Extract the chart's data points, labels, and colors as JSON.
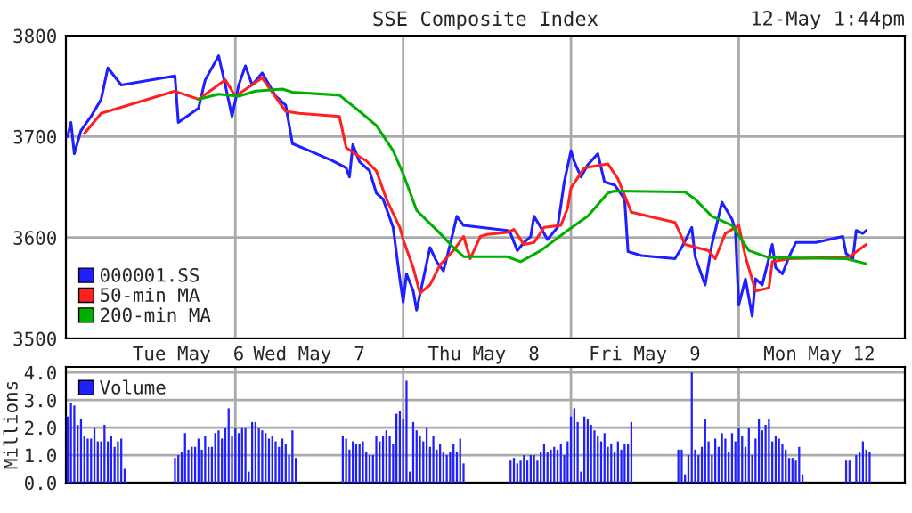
{
  "chart_data": [
    {
      "type": "line",
      "title": "SSE Composite Index",
      "annotations": [
        "12-May 1:44pm"
      ],
      "categories": [
        null,
        null,
        null,
        null,
        null,
        null,
        null,
        null,
        null,
        null,
        null,
        null,
        null,
        null,
        null,
        null,
        null,
        null,
        null,
        null,
        null,
        null,
        null,
        null,
        null,
        null,
        null,
        null,
        null,
        null,
        null,
        null,
        null,
        null,
        null,
        null,
        "Tue May  6",
        null,
        null,
        null,
        null,
        null,
        null,
        null,
        null,
        null,
        null,
        null,
        null,
        null,
        null,
        null,
        null,
        null,
        null,
        null,
        null,
        null,
        null,
        null,
        null,
        null,
        null,
        null,
        null,
        null,
        null,
        null,
        null,
        null,
        null,
        null,
        "Wed May  7",
        null,
        null,
        null,
        null,
        null,
        null,
        null,
        null,
        null,
        null,
        null,
        null,
        null,
        null,
        null,
        null,
        null,
        null,
        null,
        null,
        null,
        null,
        null,
        null,
        null,
        null,
        null,
        null,
        null,
        null,
        null,
        null,
        null,
        null,
        null,
        null,
        null,
        null,
        null,
        null,
        null,
        null,
        null,
        null,
        null,
        null,
        null,
        null,
        null,
        null,
        null,
        "Thu May  8",
        null,
        null,
        null,
        null,
        null,
        null,
        null,
        null,
        null,
        null,
        null,
        null,
        null,
        null,
        null,
        null,
        null,
        null,
        null,
        null,
        null,
        null,
        null,
        null,
        null,
        null,
        null,
        null,
        null,
        null,
        null,
        null,
        null,
        null,
        null,
        null,
        null,
        null,
        null,
        null,
        null,
        null,
        null,
        null,
        null,
        null,
        null,
        "Fri May  9",
        null,
        null,
        null,
        null,
        null,
        null,
        null,
        null,
        null,
        null,
        null,
        null,
        null,
        null,
        null,
        null,
        null,
        null,
        null,
        null,
        null,
        null,
        null,
        null,
        null,
        null,
        null,
        null,
        null,
        null,
        null,
        null,
        null,
        null,
        null,
        null,
        null,
        null,
        null,
        null,
        null,
        null,
        null,
        null,
        null,
        null,
        null,
        null,
        null,
        null,
        null,
        "Mon May 12",
        null,
        null,
        null,
        null,
        null,
        null,
        null,
        null,
        null,
        null,
        null,
        null,
        null,
        null,
        null,
        null,
        null,
        null,
        null,
        null,
        null,
        null,
        null,
        null,
        null
      ],
      "ylim": [
        3500,
        3800
      ],
      "yticks": [
        3500,
        3600,
        3700,
        3800
      ],
      "grid": true,
      "legend": "bottom left",
      "series": [
        {
          "name": "000001.SS",
          "color": "#1f1fff",
          "values": [
            3700,
            3714,
            3683,
            null,
            3706,
            null,
            null,
            3720,
            null,
            null,
            3737,
            null,
            3768,
            null,
            null,
            null,
            3751,
            null,
            null,
            null,
            null,
            null,
            null,
            null,
            null,
            null,
            null,
            null,
            null,
            null,
            null,
            null,
            3760,
            3714,
            null,
            null,
            null,
            null,
            null,
            3728,
            null,
            3756,
            null,
            null,
            null,
            3780,
            null,
            3751,
            null,
            3720,
            null,
            3751,
            null,
            3770,
            null,
            3751,
            null,
            null,
            3763,
            null,
            null,
            null,
            3740,
            null,
            null,
            3731,
            null,
            3693,
            null,
            null,
            null,
            null,
            3686,
            null,
            null,
            null,
            null,
            null,
            null,
            3676,
            null,
            null,
            null,
            3669,
            3660,
            3692,
            null,
            3675,
            null,
            null,
            3666,
            null,
            3644,
            null,
            3638,
            null,
            null,
            3610,
            null,
            3559,
            3536,
            3564,
            null,
            3547,
            3528,
            null,
            3559,
            null,
            3590,
            null,
            3576,
            null,
            3567,
            null,
            3593,
            null,
            3621,
            null,
            3612,
            null,
            null,
            null,
            null,
            null,
            null,
            null,
            null,
            null,
            null,
            null,
            null,
            3607,
            3604,
            null,
            3587,
            null,
            3595,
            null,
            3601,
            3621,
            null,
            3610,
            null,
            3598,
            null,
            null,
            3610,
            3632,
            3655,
            null,
            3686,
            3675,
            null,
            3660,
            null,
            3672,
            null,
            null,
            3683,
            null,
            3655,
            null,
            null,
            3652,
            null,
            null,
            3638,
            3586,
            null,
            null,
            null,
            3582,
            null,
            null,
            null,
            null,
            null,
            null,
            null,
            null,
            null,
            3579,
            null,
            3590,
            null,
            null,
            3610,
            3581,
            null,
            null,
            3553,
            null,
            3593,
            null,
            null,
            3635,
            null,
            null,
            3618,
            3607,
            3533,
            null,
            3559,
            null,
            3522,
            3559,
            null,
            3553,
            null,
            null,
            3593,
            3570,
            null,
            3564,
            null,
            3581,
            null,
            3595,
            null,
            null,
            null,
            null,
            null,
            3595,
            null,
            null,
            null,
            null,
            null,
            null,
            null,
            3601,
            3584,
            null,
            3579,
            3607,
            null,
            3604,
            3607,
            null,
            null,
            null,
            null,
            null,
            null,
            null,
            null,
            null,
            null,
            null
          ]
        },
        {
          "name": "50-min MA",
          "color": "#ff2020",
          "values": [
            null,
            null,
            null,
            null,
            null,
            3703,
            null,
            null,
            null,
            null,
            3723,
            null,
            null,
            null,
            null,
            null,
            null,
            null,
            null,
            null,
            null,
            null,
            null,
            null,
            null,
            null,
            null,
            null,
            null,
            null,
            null,
            null,
            3745,
            null,
            null,
            null,
            null,
            null,
            null,
            3737,
            null,
            null,
            null,
            null,
            null,
            null,
            null,
            3756,
            null,
            null,
            3740,
            null,
            null,
            null,
            null,
            null,
            null,
            null,
            3758,
            null,
            null,
            null,
            null,
            null,
            null,
            3725,
            null,
            null,
            null,
            3723,
            null,
            null,
            null,
            null,
            null,
            null,
            null,
            null,
            null,
            null,
            null,
            3720,
            null,
            3689,
            null,
            null,
            null,
            3680,
            null,
            3676,
            null,
            null,
            3666,
            null,
            null,
            3638,
            null,
            null,
            null,
            3610,
            3598,
            null,
            null,
            3570,
            null,
            3545,
            null,
            null,
            3553,
            null,
            null,
            3573,
            null,
            null,
            null,
            3587,
            null,
            null,
            3601,
            null,
            3579,
            null,
            null,
            3601,
            null,
            3603,
            null,
            null,
            null,
            null,
            null,
            3605,
            null,
            3608,
            null,
            null,
            3593,
            null,
            null,
            3595,
            null,
            null,
            3610,
            null,
            null,
            null,
            null,
            3612,
            null,
            3629,
            3649,
            null,
            null,
            null,
            3669,
            null,
            null,
            null,
            null,
            null,
            null,
            3673,
            null,
            null,
            3658,
            null,
            null,
            null,
            3625,
            null,
            null,
            null,
            null,
            null,
            null,
            null,
            null,
            null,
            null,
            null,
            null,
            3615,
            null,
            null,
            3593,
            null,
            null,
            null,
            null,
            null,
            null,
            3587,
            null,
            3579,
            null,
            null,
            3604,
            null,
            null,
            null,
            3612,
            null,
            3581,
            null,
            null,
            3547,
            null,
            null,
            null,
            3550,
            3576,
            null,
            null,
            null,
            null,
            3579,
            null,
            null,
            null,
            null,
            null,
            null,
            null,
            null,
            null,
            null,
            3580,
            null,
            null,
            null,
            null,
            null,
            null,
            3581,
            null,
            null,
            null,
            null,
            3593,
            null,
            null,
            null,
            null,
            null,
            null,
            null,
            null,
            null,
            null,
            null
          ]
        },
        {
          "name": "200-min MA",
          "color": "#00b000",
          "values": [
            null,
            null,
            null,
            null,
            null,
            null,
            null,
            null,
            null,
            null,
            null,
            null,
            null,
            null,
            null,
            null,
            null,
            null,
            null,
            null,
            null,
            null,
            null,
            null,
            null,
            null,
            null,
            null,
            null,
            null,
            null,
            null,
            null,
            null,
            null,
            null,
            null,
            null,
            null,
            3737,
            null,
            null,
            null,
            null,
            null,
            3742,
            null,
            null,
            null,
            null,
            null,
            3740,
            null,
            null,
            null,
            null,
            3745,
            null,
            null,
            null,
            null,
            null,
            null,
            null,
            3747,
            null,
            null,
            3744,
            null,
            null,
            null,
            null,
            null,
            null,
            null,
            null,
            null,
            null,
            null,
            null,
            null,
            3741,
            null,
            null,
            null,
            null,
            null,
            3725,
            null,
            null,
            null,
            null,
            3711,
            null,
            null,
            null,
            null,
            3686,
            null,
            null,
            3663,
            null,
            null,
            null,
            3627,
            null,
            null,
            null,
            null,
            null,
            null,
            3604,
            null,
            null,
            null,
            3590,
            null,
            null,
            3581,
            null,
            null,
            null,
            null,
            null,
            null,
            null,
            null,
            null,
            null,
            null,
            null,
            3581,
            null,
            null,
            null,
            3576,
            null,
            null,
            null,
            null,
            null,
            3587,
            null,
            null,
            null,
            null,
            null,
            null,
            null,
            3607,
            null,
            null,
            null,
            null,
            null,
            3621,
            null,
            null,
            null,
            null,
            null,
            3644,
            null,
            3646,
            null,
            null,
            null,
            null,
            null,
            null,
            null,
            null,
            null,
            null,
            null,
            null,
            null,
            null,
            null,
            null,
            null,
            null,
            null,
            null,
            3645,
            null,
            null,
            3638,
            null,
            null,
            null,
            null,
            3621,
            null,
            null,
            null,
            null,
            null,
            3612,
            null,
            null,
            null,
            null,
            3587,
            null,
            null,
            null,
            null,
            null,
            3580,
            null,
            null,
            null,
            null,
            null,
            null,
            null,
            null,
            null,
            null,
            null,
            null,
            null,
            null,
            null,
            null,
            null,
            null,
            null,
            null,
            null,
            null,
            3579,
            null,
            null,
            null,
            null,
            null,
            3574,
            null,
            null,
            null,
            null,
            null,
            null,
            null,
            null,
            null,
            null,
            null
          ]
        }
      ]
    },
    {
      "type": "bar",
      "ylabel": "Millions",
      "ylim": [
        0,
        4.2
      ],
      "yticks": [
        {
          "value": 0,
          "label": "0.0"
        },
        {
          "value": 1,
          "label": "1.0"
        },
        {
          "value": 2,
          "label": "2.0"
        },
        {
          "value": 3,
          "label": "3.0"
        },
        {
          "value": 4,
          "label": "4.0"
        }
      ],
      "categories": [
        null,
        null,
        null,
        null,
        null,
        null,
        null,
        null,
        null,
        null,
        null,
        null,
        null,
        null,
        null,
        null,
        null,
        null,
        null,
        null,
        null,
        null,
        null,
        null,
        null,
        null,
        null,
        null,
        null,
        null,
        null,
        null,
        null,
        null,
        null,
        null,
        null,
        null,
        null,
        null,
        null,
        null,
        null,
        null,
        null,
        null,
        null,
        null,
        null,
        null,
        null,
        null,
        null,
        null,
        null,
        null,
        null,
        null,
        null,
        null,
        null,
        null,
        null,
        null,
        null,
        null,
        null,
        null,
        null,
        null,
        null,
        null,
        null,
        null,
        null,
        null,
        null,
        null,
        null,
        null,
        null,
        null,
        null,
        null,
        null,
        null,
        null,
        null,
        null,
        null,
        null,
        null,
        null,
        null,
        null,
        null,
        null,
        null,
        null,
        null,
        null,
        null,
        null,
        null,
        null,
        null,
        null,
        null,
        null,
        null,
        null,
        null,
        null,
        null,
        null,
        null,
        null,
        null,
        null,
        null,
        null,
        null,
        null,
        null,
        null,
        null,
        null,
        null,
        null,
        null,
        null,
        null,
        null,
        null,
        null,
        null,
        null,
        null,
        null,
        null,
        null,
        null,
        null,
        null,
        null,
        null,
        null,
        null,
        null,
        null,
        null,
        null,
        null,
        null,
        null,
        null,
        null,
        null,
        null,
        null,
        null,
        null,
        null,
        null,
        null,
        null,
        null,
        null,
        null,
        null,
        null,
        null,
        null,
        null,
        null,
        null,
        null,
        null,
        null,
        null,
        null,
        null,
        null,
        null,
        null,
        null,
        null,
        null,
        null,
        null,
        null,
        null,
        null,
        null,
        null,
        null,
        null,
        null,
        null,
        null,
        null,
        null,
        null,
        null,
        null,
        null,
        null,
        null,
        null,
        null,
        null,
        null,
        null,
        null,
        null,
        null,
        null,
        null,
        null,
        null,
        null,
        null,
        null,
        null,
        null,
        null,
        null,
        null,
        null,
        null,
        null,
        null,
        null,
        null,
        null,
        null,
        null,
        null,
        null,
        null,
        null,
        null,
        null,
        null,
        null,
        null,
        null,
        null,
        null,
        null
      ],
      "grid": true,
      "legend": "top left",
      "tick_labels": "y",
      "series": [
        {
          "name": "Volume",
          "color": "#1f1fff",
          "values": [
            2.4,
            2.9,
            2.8,
            2.1,
            2.3,
            1.7,
            1.6,
            1.6,
            2.0,
            1.5,
            1.5,
            2.1,
            1.5,
            1.7,
            1.3,
            1.5,
            1.6,
            0.5,
            null,
            null,
            null,
            null,
            null,
            null,
            null,
            null,
            null,
            null,
            null,
            null,
            null,
            null,
            0.9,
            1.0,
            1.1,
            1.8,
            1.2,
            1.3,
            1.3,
            1.6,
            1.2,
            1.7,
            1.3,
            1.3,
            1.8,
            1.9,
            1.6,
            2.0,
            2.7,
            1.7,
            2.0,
            1.8,
            2.0,
            2.0,
            0.4,
            2.2,
            2.2,
            2.0,
            1.9,
            1.8,
            1.6,
            1.7,
            1.5,
            1.3,
            1.6,
            1.4,
            1.0,
            1.9,
            0.9,
            null,
            null,
            null,
            null,
            null,
            null,
            null,
            null,
            null,
            null,
            null,
            null,
            null,
            1.7,
            1.6,
            1.2,
            1.5,
            1.4,
            1.4,
            1.5,
            1.1,
            1.0,
            1.0,
            1.7,
            1.5,
            1.7,
            1.9,
            1.7,
            1.4,
            2.5,
            2.6,
            2.3,
            3.7,
            0.4,
            2.2,
            1.9,
            1.7,
            1.5,
            2.0,
            1.3,
            1.7,
            1.2,
            1.4,
            1.1,
            1.0,
            1.1,
            1.4,
            1.1,
            1.6,
            0.7,
            null,
            null,
            null,
            null,
            null,
            null,
            null,
            null,
            null,
            null,
            null,
            null,
            null,
            0.8,
            0.9,
            0.7,
            0.8,
            1.0,
            0.8,
            1.0,
            1.0,
            0.8,
            1.1,
            1.4,
            1.1,
            1.2,
            1.3,
            1.2,
            1.4,
            1.0,
            1.5,
            2.4,
            2.7,
            2.2,
            0.4,
            2.4,
            2.3,
            2.1,
            1.9,
            1.7,
            1.5,
            1.8,
            1.3,
            1.4,
            1.1,
            1.5,
            1.2,
            1.4,
            1.4,
            2.2,
            null,
            null,
            null,
            null,
            null,
            null,
            null,
            null,
            null,
            null,
            null,
            null,
            null,
            1.2,
            1.2,
            0.3,
            1.0,
            4.0,
            1.2,
            1.0,
            1.3,
            2.3,
            1.5,
            1.0,
            1.6,
            1.3,
            1.8,
            1.6,
            1.1,
            1.8,
            1.5,
            2.0,
            1.7,
            1.3,
            2.0,
            1.0,
            1.6,
            2.3,
            1.9,
            2.1,
            2.3,
            1.5,
            1.7,
            1.6,
            1.4,
            1.2,
            0.9,
            0.9,
            0.8,
            1.3,
            0.3,
            null,
            null,
            null,
            null,
            null,
            null,
            null,
            null,
            null,
            null,
            null,
            null,
            0.8,
            0.8,
            null,
            1.0,
            1.1,
            1.5,
            1.2,
            1.1,
            null,
            null,
            null,
            null,
            null,
            null,
            null,
            null,
            null,
            null
          ]
        }
      ]
    }
  ]
}
